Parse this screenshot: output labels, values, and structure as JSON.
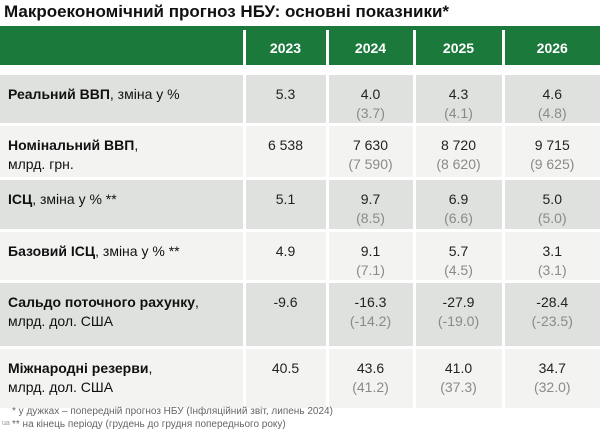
{
  "title": "Макроекономічний прогноз НБУ: основні показники*",
  "header": {
    "years": [
      "2023",
      "2024",
      "2025",
      "2026"
    ]
  },
  "rows": [
    {
      "label_bold": "Реальний ВВП",
      "label_rest": ", зміна у %",
      "label_line2": "",
      "values": [
        {
          "main": "5.3",
          "sub": ""
        },
        {
          "main": "4.0",
          "sub": "(3.7)"
        },
        {
          "main": "4.3",
          "sub": "(4.1)"
        },
        {
          "main": "4.6",
          "sub": "(4.8)"
        }
      ]
    },
    {
      "label_bold": "Номінальний ВВП",
      "label_rest": ",",
      "label_line2": "млрд. грн.",
      "values": [
        {
          "main": "6 538",
          "sub": ""
        },
        {
          "main": "7 630",
          "sub": "(7 590)"
        },
        {
          "main": "8 720",
          "sub": "(8 620)"
        },
        {
          "main": "9 715",
          "sub": "(9 625)"
        }
      ]
    },
    {
      "label_bold": "ІСЦ",
      "label_rest": ", зміна у % **",
      "label_line2": "",
      "values": [
        {
          "main": "5.1",
          "sub": ""
        },
        {
          "main": "9.7",
          "sub": "(8.5)"
        },
        {
          "main": "6.9",
          "sub": "(6.6)"
        },
        {
          "main": "5.0",
          "sub": "(5.0)"
        }
      ]
    },
    {
      "label_bold": "Базовий ІСЦ",
      "label_rest": ", зміна у % **",
      "label_line2": "",
      "values": [
        {
          "main": "4.9",
          "sub": ""
        },
        {
          "main": "9.1",
          "sub": "(7.1)"
        },
        {
          "main": "5.7",
          "sub": "(4.5)"
        },
        {
          "main": "3.1",
          "sub": "(3.1)"
        }
      ]
    },
    {
      "label_bold": "Сальдо поточного рахунку",
      "label_rest": ",",
      "label_line2": "млрд. дол. США",
      "values": [
        {
          "main": "-9.6",
          "sub": ""
        },
        {
          "main": "-16.3",
          "sub": "(-14.2)"
        },
        {
          "main": "-27.9",
          "sub": "(-19.0)"
        },
        {
          "main": "-28.4",
          "sub": "(-23.5)"
        }
      ]
    },
    {
      "label_bold": "Міжнародні резерви",
      "label_rest": ",",
      "label_line2": "млрд. дол. США",
      "values": [
        {
          "main": "40.5",
          "sub": ""
        },
        {
          "main": "43.6",
          "sub": "(41.2)"
        },
        {
          "main": "41.0",
          "sub": "(37.3)"
        },
        {
          "main": "34.7",
          "sub": "(32.0)"
        }
      ]
    }
  ],
  "notes": [
    "* у дужках – попередній прогноз НБУ (Інфляційний звіт, липень 2024)",
    "** на кінець періоду (грудень до грудня попереднього року)"
  ],
  "corner_mark": "ua"
}
